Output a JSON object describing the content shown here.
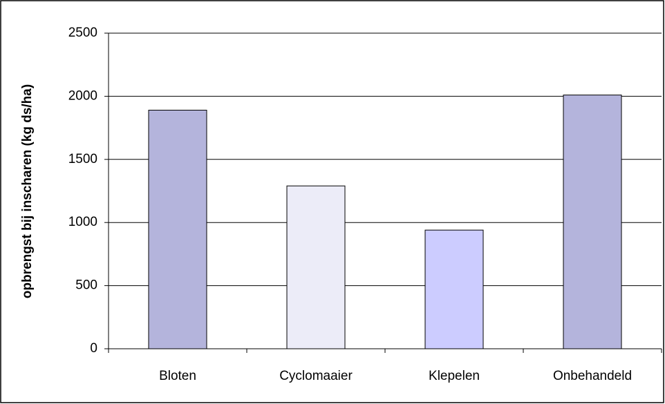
{
  "chart_data": {
    "type": "bar",
    "y_label": "opbrengst bij inscharen (kg ds/ha)",
    "categories": [
      "Bloten",
      "Cyclomaaier",
      "Klepelen",
      "Onbehandeld"
    ],
    "values": [
      1890,
      1290,
      940,
      2010
    ],
    "colors": [
      "#b4b4dc",
      "#ececf8",
      "#ccccff",
      "#b4b4dc"
    ],
    "ylim": [
      0,
      2500
    ],
    "yticks": [
      0,
      500,
      1000,
      1500,
      2000,
      2500
    ],
    "grid": true
  }
}
